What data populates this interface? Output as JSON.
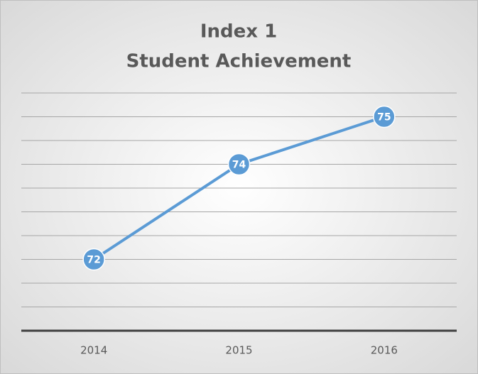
{
  "chart_data": {
    "type": "line",
    "title": "Index 1",
    "subtitle": "Student Achievement",
    "categories": [
      "2014",
      "2015",
      "2016"
    ],
    "series": [
      {
        "name": "Student Achievement",
        "color": "#5b9bd5",
        "values": [
          72,
          74,
          75
        ]
      }
    ],
    "ylim": [
      70.5,
      75.5
    ],
    "yticks": [
      70.5,
      71,
      71.5,
      72,
      72.5,
      73,
      73.5,
      74,
      74.5,
      75,
      75.5
    ],
    "grid": true
  }
}
